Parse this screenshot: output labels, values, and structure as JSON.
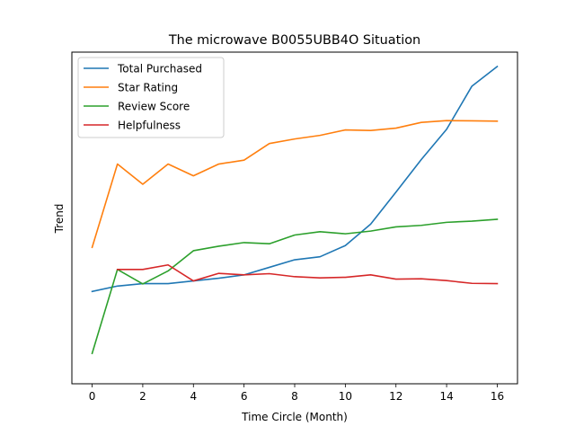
{
  "chart_data": {
    "type": "line",
    "title": "The microwave B0055UBB4O Situation",
    "xlabel": "Time Circle (Month)",
    "ylabel": "Trend",
    "x": [
      0,
      1,
      2,
      3,
      4,
      5,
      6,
      7,
      8,
      9,
      10,
      11,
      12,
      13,
      14,
      15,
      16
    ],
    "xticks": [
      "0",
      "2",
      "4",
      "6",
      "8",
      "10",
      "12",
      "14",
      "16"
    ],
    "xlim": [
      -0.8,
      16.8
    ],
    "ylim": [
      0,
      1
    ],
    "ticks_y_shown": false,
    "grid": false,
    "legend_position": "top-left",
    "series": [
      {
        "name": "Total Purchased",
        "color": "#1f77b4",
        "values": [
          0.255,
          0.273,
          0.281,
          0.281,
          0.29,
          0.299,
          0.31,
          0.335,
          0.36,
          0.37,
          0.407,
          0.478,
          0.584,
          0.692,
          0.792,
          0.935,
          1.0
        ]
      },
      {
        "name": "Star Rating",
        "color": "#ff7f0e",
        "values": [
          0.401,
          0.677,
          0.61,
          0.677,
          0.638,
          0.677,
          0.69,
          0.745,
          0.76,
          0.772,
          0.79,
          0.788,
          0.796,
          0.815,
          0.821,
          0.82,
          0.819
        ]
      },
      {
        "name": "Review Score",
        "color": "#2ca02c",
        "values": [
          0.05,
          0.328,
          0.28,
          0.323,
          0.39,
          0.405,
          0.417,
          0.413,
          0.442,
          0.453,
          0.446,
          0.455,
          0.469,
          0.474,
          0.484,
          0.488,
          0.494
        ]
      },
      {
        "name": "Helpfulness",
        "color": "#d62728",
        "values": [
          null,
          0.328,
          0.328,
          0.343,
          0.29,
          0.315,
          0.31,
          0.314,
          0.304,
          0.3,
          0.302,
          0.31,
          0.296,
          0.297,
          0.291,
          0.282,
          0.281
        ]
      }
    ]
  }
}
